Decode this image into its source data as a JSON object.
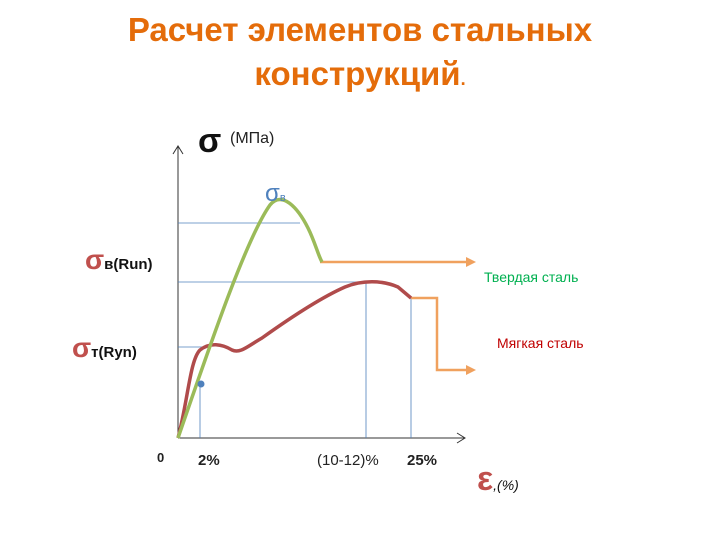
{
  "title": {
    "line1": "Расчет элементов стальных",
    "line2": "конструкций",
    "trailing": "."
  },
  "axes": {
    "y_symbol": "σ",
    "y_unit": "(МПа)",
    "x_symbol": "ε",
    "x_unit": ",(%)",
    "origin": "0"
  },
  "labels": {
    "sigma_b_top": "σ",
    "sigma_b_top_sub": "в",
    "sigma_b_left": "σ",
    "sigma_b_left_sub": "в(Run)",
    "sigma_t_left": "σ",
    "sigma_t_left_sub": "т(Ryn)",
    "hard_steel": "Твердая сталь",
    "soft_steel": "Мягкая сталь",
    "x_tick_1": "2%",
    "x_tick_2": "(10-12)%",
    "x_tick_3": "25%"
  },
  "colors": {
    "title": "#E46C0A",
    "hard_curve": "#9BBB59",
    "soft_curve": "#B04B4B",
    "arrow": "#F0A15E",
    "guide": "#4F81BD",
    "point": "#4F81BD",
    "hard_label": "#00B050",
    "soft_label": "#C00000"
  },
  "chart_data": {
    "type": "line",
    "series": [
      {
        "name": "Твердая сталь"
      },
      {
        "name": "Мягкая сталь"
      }
    ],
    "x_ticks": [
      "2%",
      "(10-12)%",
      "25%"
    ],
    "y_ticks": [
      "σт(Ryn)",
      "σв(Run)"
    ]
  }
}
